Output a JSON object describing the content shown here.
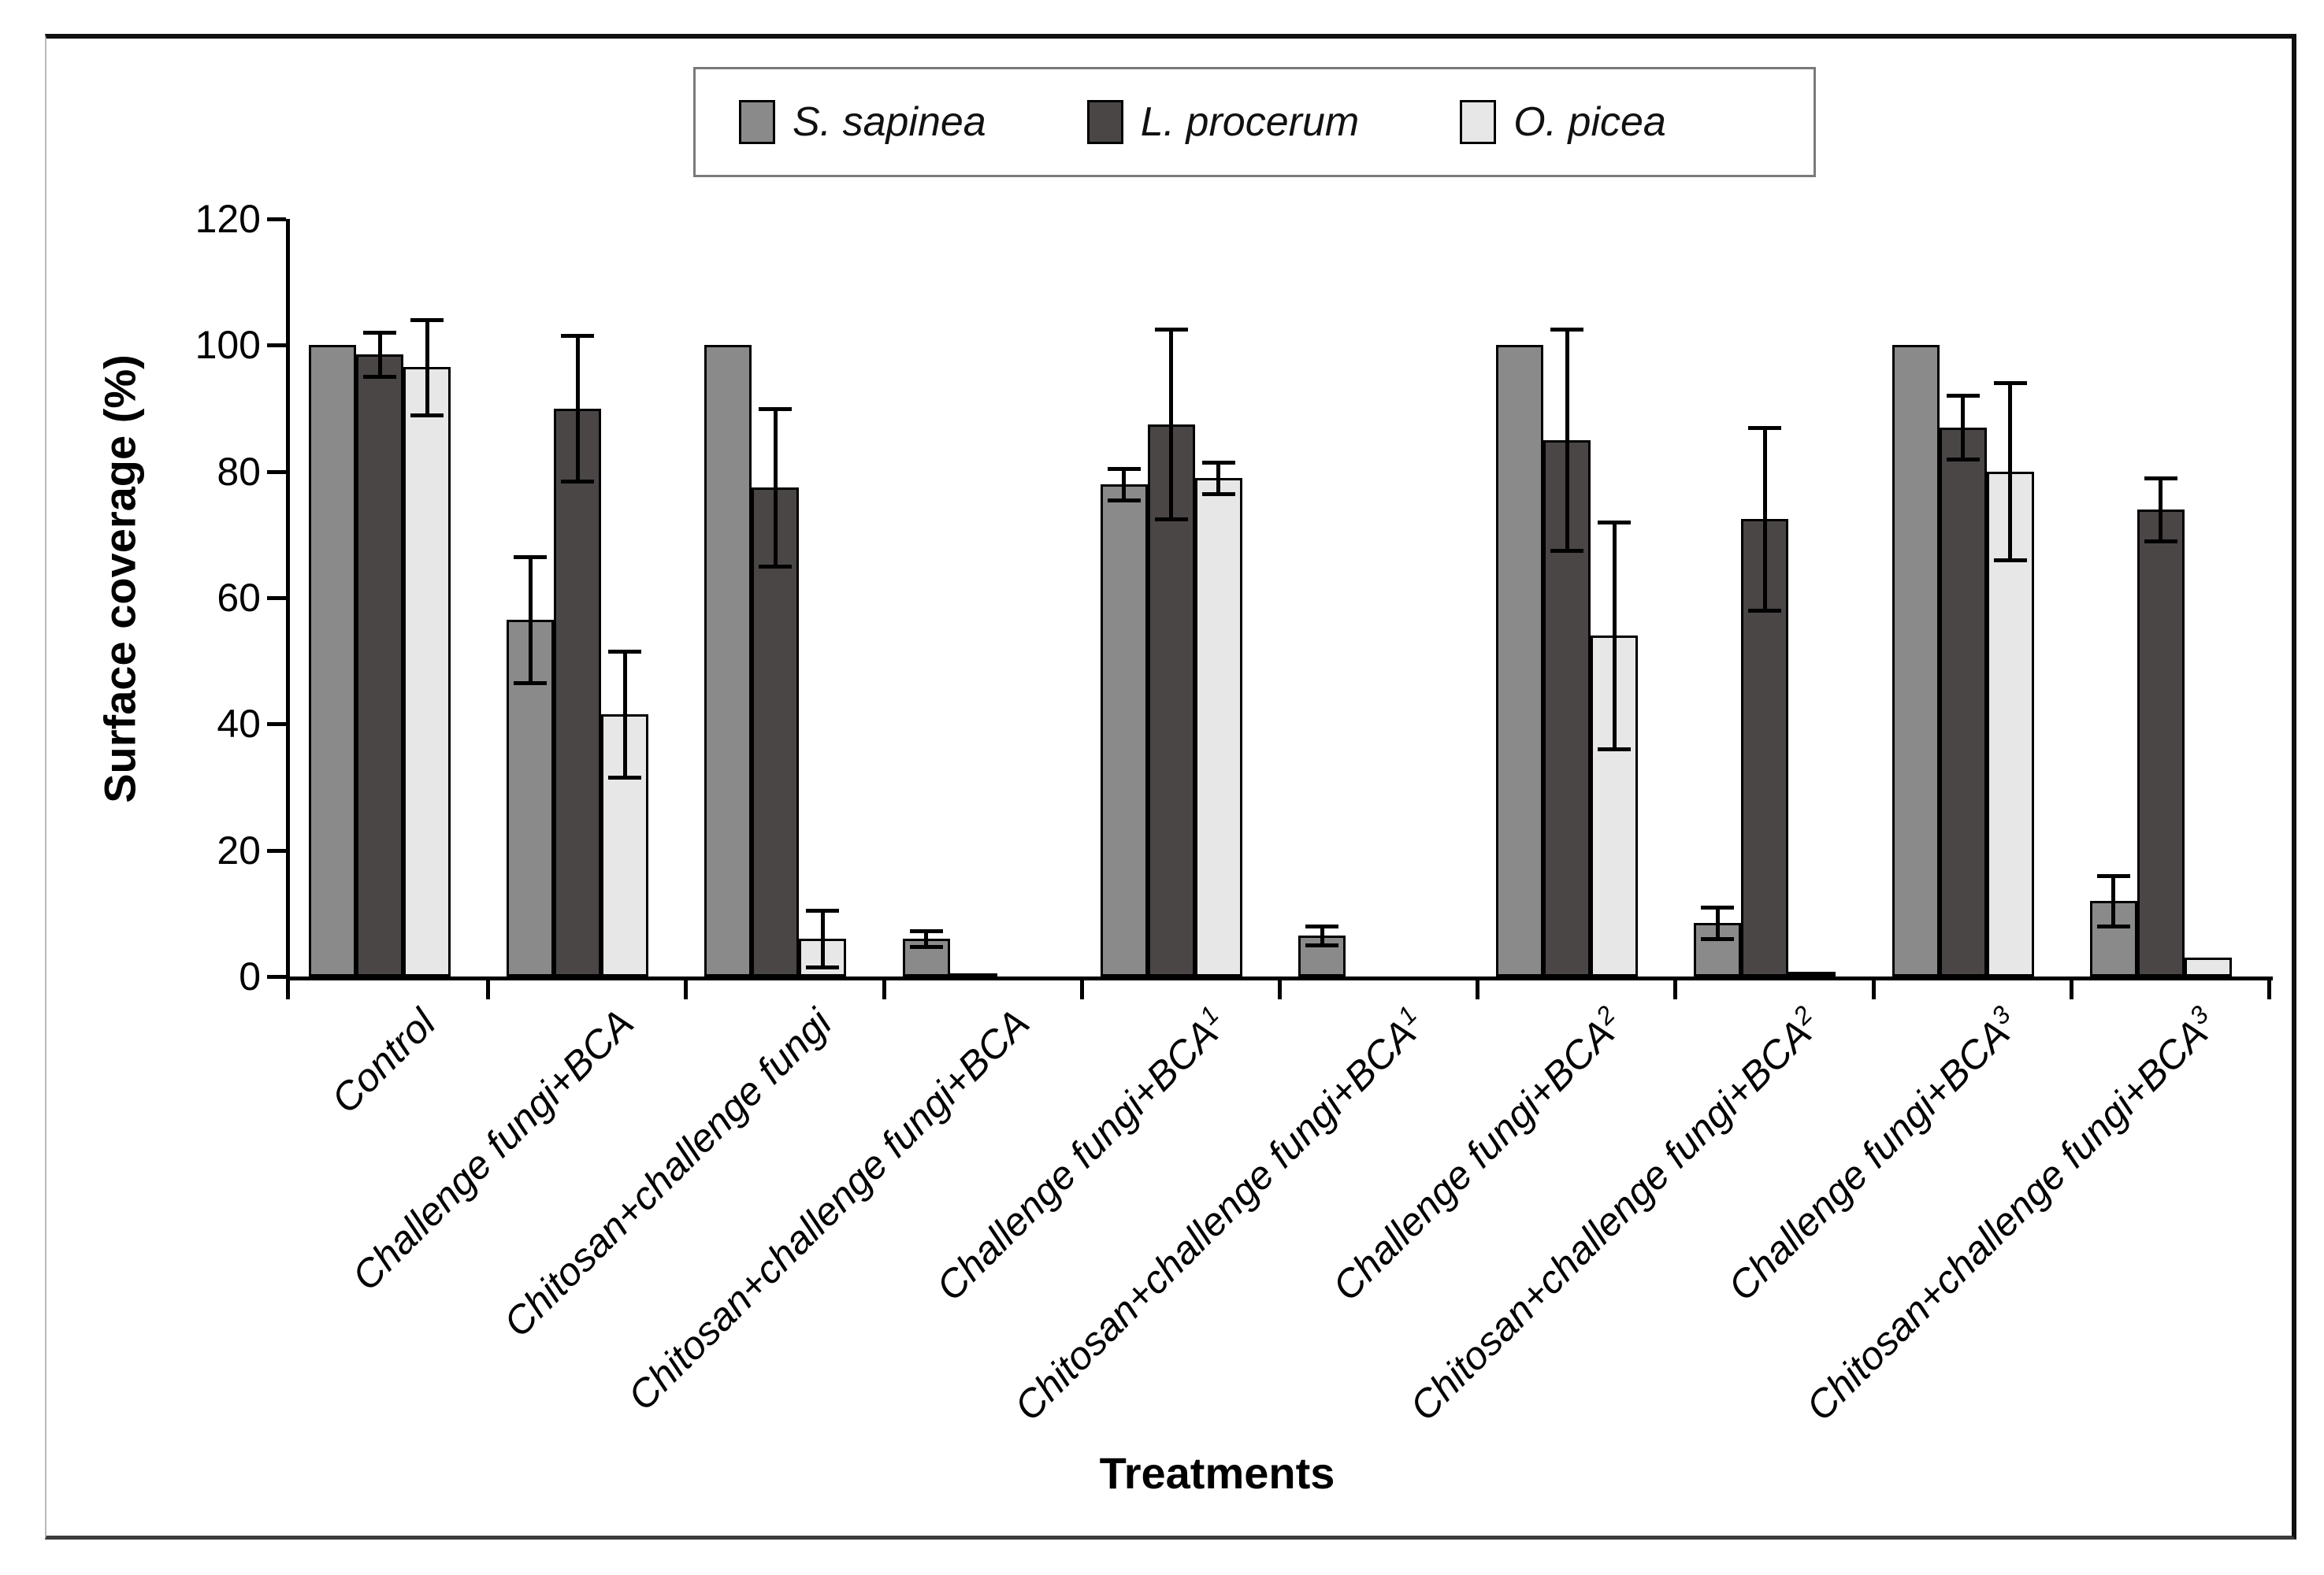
{
  "chart_data": {
    "type": "bar",
    "title": "",
    "xlabel": "Treatments",
    "ylabel": "Surface coverage (%)",
    "ylim": [
      0,
      120
    ],
    "yticks": [
      0,
      20,
      40,
      60,
      80,
      100,
      120
    ],
    "grid": false,
    "legend_position": "top-center",
    "error_bars": true,
    "categories": [
      {
        "label": "Control",
        "sup": ""
      },
      {
        "label": "Challenge fungi+BCA",
        "sup": ""
      },
      {
        "label": "Chitosan+challenge fungi",
        "sup": ""
      },
      {
        "label": "Chitosan+challenge fungi+BCA",
        "sup": ""
      },
      {
        "label": "Challenge fungi+BCA",
        "sup": "1"
      },
      {
        "label": "Chitosan+challenge fungi+BCA",
        "sup": "1"
      },
      {
        "label": "Challenge fungi+BCA",
        "sup": "2"
      },
      {
        "label": "Chitosan+challenge fungi+BCA",
        "sup": "2"
      },
      {
        "label": "Challenge fungi+BCA",
        "sup": "3"
      },
      {
        "label": "Chitosan+challenge fungi+BCA",
        "sup": "3"
      }
    ],
    "series": [
      {
        "name": "S. sapinea",
        "color": "#8a8a8a",
        "values": [
          100,
          56.5,
          100,
          6,
          78,
          6.5,
          100,
          8.5,
          100,
          12
        ],
        "errors": [
          0,
          10,
          0,
          1.2,
          2.5,
          1.5,
          0,
          2.5,
          0,
          4
        ]
      },
      {
        "name": "L. procerum",
        "color": "#4a4646",
        "values": [
          98.5,
          90,
          77.5,
          0.5,
          87.5,
          0,
          85,
          72.5,
          87,
          74
        ],
        "errors": [
          3.5,
          11.5,
          12.5,
          0,
          15,
          0,
          17.5,
          14.5,
          5,
          5
        ]
      },
      {
        "name": "O. picea",
        "color": "#e7e7e7",
        "values": [
          96.5,
          41.5,
          6,
          0,
          79,
          0,
          54,
          0.7,
          80,
          3
        ],
        "errors": [
          7.5,
          10,
          4.5,
          0,
          2.5,
          0,
          18,
          0,
          14,
          0
        ]
      }
    ],
    "colors": {
      "axis": "#000000",
      "error_bar": "#000000",
      "bar_border": "#000000",
      "legend_border": "#7a7a7a"
    }
  }
}
